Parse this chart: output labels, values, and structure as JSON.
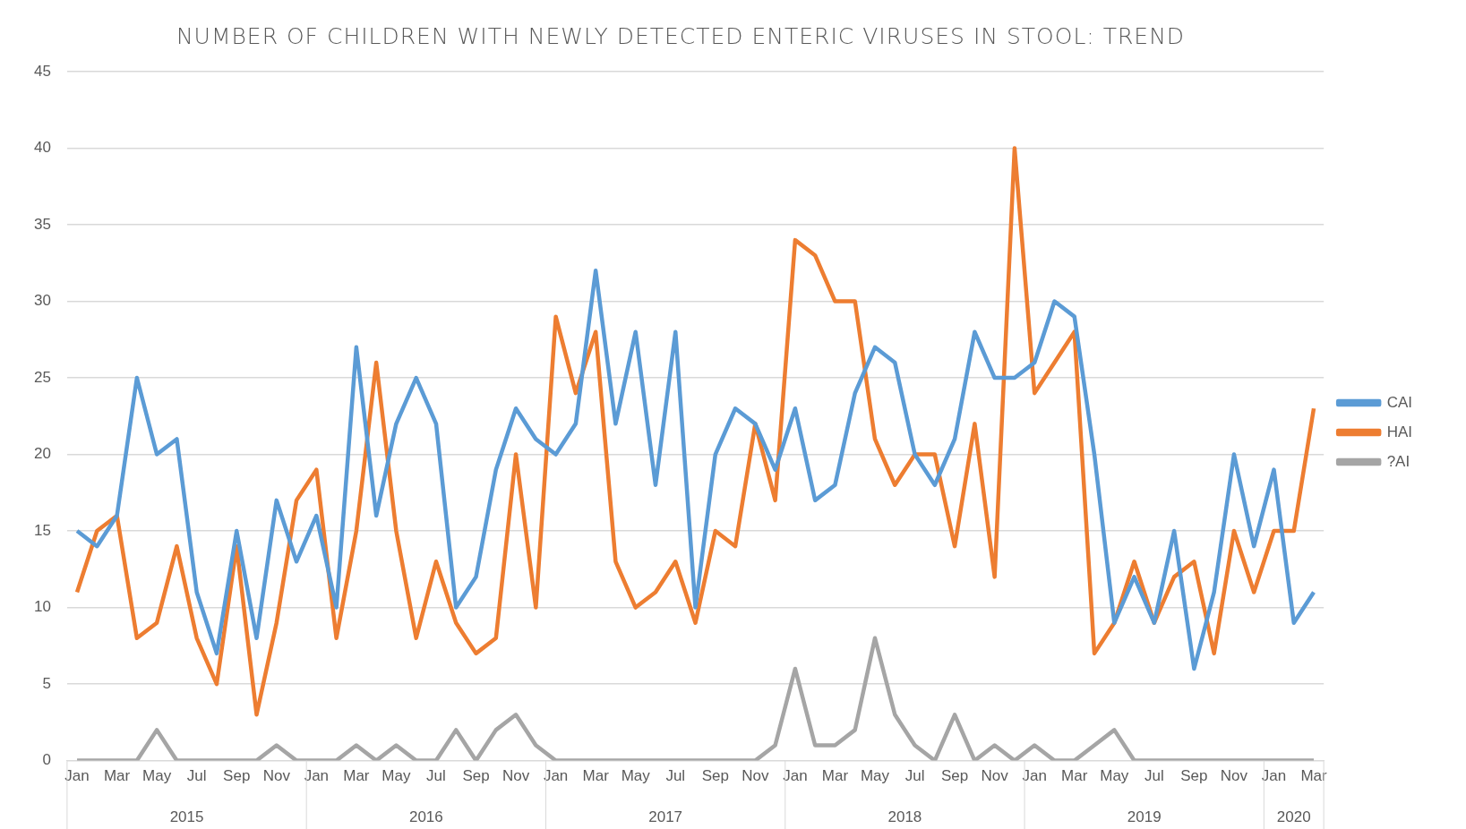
{
  "chart_data": {
    "type": "line",
    "title": "NUMBER OF CHILDREN WITH NEWLY DETECTED ENTERIC VIRUSES IN STOOL: TREND",
    "categories": [
      "Jan",
      null,
      "Mar",
      null,
      "May",
      null,
      "Jul",
      null,
      "Sep",
      null,
      "Nov",
      null,
      "Jan",
      null,
      "Mar",
      null,
      "May",
      null,
      "Jul",
      null,
      "Sep",
      null,
      "Nov",
      null,
      "Jan",
      null,
      "Mar",
      null,
      "May",
      null,
      "Jul",
      null,
      "Sep",
      null,
      "Nov",
      null,
      "Jan",
      null,
      "Mar",
      null,
      "May",
      null,
      "Jul",
      null,
      "Sep",
      null,
      "Nov",
      null,
      "Jan",
      null,
      "Mar",
      null,
      "May",
      null,
      "Jul",
      null,
      "Sep",
      null,
      "Nov",
      null,
      "Jan",
      null,
      "Mar"
    ],
    "series": [
      {
        "name": "CAI",
        "color": "#5b9bd5",
        "values": [
          15,
          14,
          16,
          25,
          20,
          21,
          11,
          7,
          15,
          8,
          17,
          13,
          16,
          10,
          27,
          16,
          22,
          25,
          22,
          10,
          12,
          19,
          23,
          21,
          20,
          22,
          32,
          22,
          28,
          18,
          28,
          10,
          20,
          23,
          22,
          19,
          23,
          17,
          18,
          24,
          27,
          26,
          20,
          18,
          21,
          28,
          25,
          25,
          26,
          30,
          29,
          20,
          9,
          12,
          9,
          15,
          6,
          11,
          20,
          14,
          19,
          9,
          11
        ]
      },
      {
        "name": "HAI",
        "color": "#ed7d31",
        "values": [
          11,
          15,
          16,
          8,
          9,
          14,
          8,
          5,
          14,
          3,
          9,
          17,
          19,
          8,
          15,
          26,
          15,
          8,
          13,
          9,
          7,
          8,
          20,
          10,
          29,
          24,
          28,
          13,
          10,
          11,
          13,
          9,
          15,
          14,
          22,
          17,
          34,
          33,
          30,
          30,
          21,
          18,
          20,
          20,
          14,
          22,
          12,
          40,
          24,
          26,
          28,
          7,
          9,
          13,
          9,
          12,
          13,
          7,
          15,
          11,
          15,
          15,
          23
        ]
      },
      {
        "name": "?AI",
        "color": "#a5a5a5",
        "values": [
          0,
          0,
          0,
          0,
          2,
          0,
          0,
          0,
          0,
          0,
          1,
          0,
          0,
          0,
          1,
          0,
          1,
          0,
          0,
          2,
          0,
          2,
          3,
          1,
          0,
          0,
          0,
          0,
          0,
          0,
          0,
          0,
          0,
          0,
          0,
          1,
          6,
          1,
          1,
          2,
          8,
          3,
          1,
          0,
          3,
          0,
          1,
          0,
          1,
          0,
          0,
          1,
          2,
          0,
          0,
          0,
          0,
          0,
          0,
          0,
          0,
          0,
          0
        ]
      }
    ],
    "ylim": [
      0,
      45
    ],
    "yticks": [
      0,
      5,
      10,
      15,
      20,
      25,
      30,
      35,
      40,
      45
    ],
    "grid": "y",
    "legend": "right",
    "marker": "none",
    "line_style": "solid",
    "annotations": [
      "2015",
      "2016",
      "2017",
      "2018",
      "2019",
      "2020"
    ]
  }
}
